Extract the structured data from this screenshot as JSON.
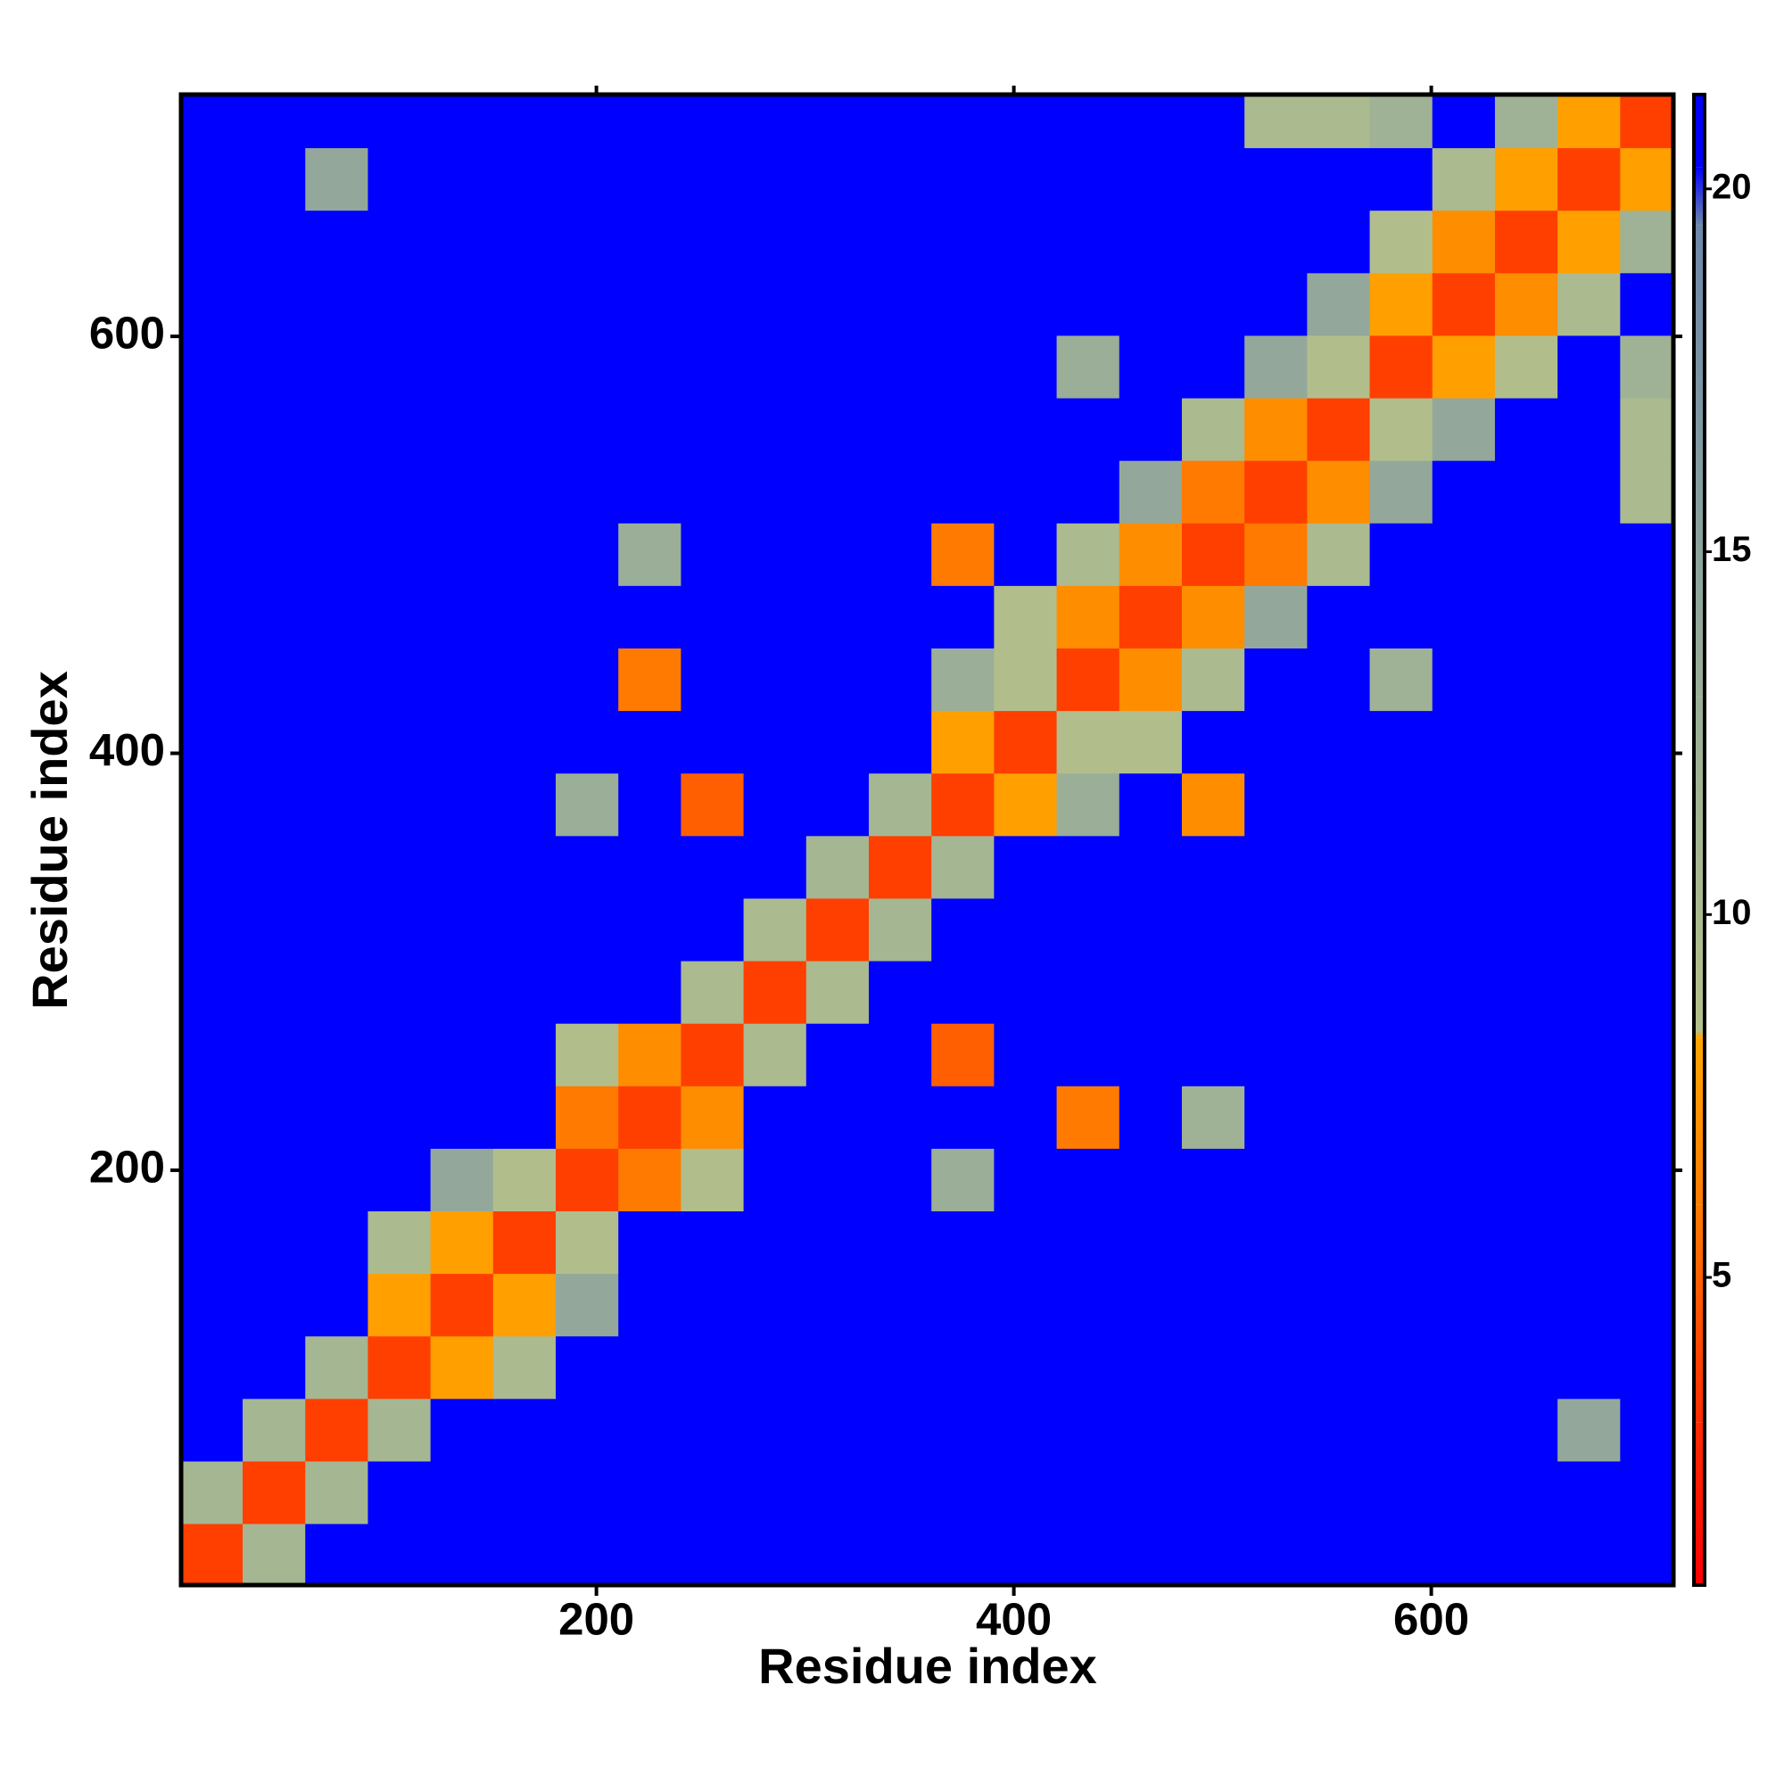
{
  "chart_data": {
    "type": "heatmap",
    "x_label": "Residue index",
    "y_label": "Residue index",
    "xlim": [
      1,
      716
    ],
    "ylim": [
      1,
      716
    ],
    "xticks": [
      200,
      400,
      600
    ],
    "yticks": [
      200,
      400,
      600
    ],
    "clim": [
      0.76,
      21.3
    ],
    "cticks": [
      5,
      10,
      15,
      20
    ],
    "colorscale": [
      {
        "value": 0.76,
        "color": "#ff0000"
      },
      {
        "value": 3,
        "color": "#ff2a00"
      },
      {
        "value": 6,
        "color": "#ff7a00"
      },
      {
        "value": 8.3,
        "color": "#ffa500"
      },
      {
        "value": 8.4,
        "color": "#b4c08a"
      },
      {
        "value": 13,
        "color": "#9aae98"
      },
      {
        "value": 19.5,
        "color": "#6d87a8"
      },
      {
        "value": 20.3,
        "color": "#0000ff"
      },
      {
        "value": 21.3,
        "color": "#0000ff"
      }
    ],
    "x": [
      15.5,
      45.5,
      75.5,
      105.5,
      135.5,
      165.5,
      195.5,
      225.5,
      255.5,
      285.5,
      315.5,
      345.5,
      375.5,
      405.5,
      435.5,
      465.5,
      495.5,
      525.5,
      555.5,
      585.5,
      615.5,
      645.5,
      675.5,
      705.5
    ],
    "y": [
      15.5,
      45.5,
      75.5,
      105.5,
      135.5,
      165.5,
      195.5,
      225.5,
      255.5,
      285.5,
      315.5,
      345.5,
      375.5,
      405.5,
      435.5,
      465.5,
      495.5,
      525.5,
      555.5,
      585.5,
      615.5,
      645.5,
      675.5,
      705.5
    ],
    "z": [
      [
        3.8,
        11,
        21,
        21,
        21,
        21,
        21,
        21,
        21,
        21,
        21,
        21,
        21,
        21,
        21,
        21,
        21,
        21,
        21,
        21,
        21,
        21,
        21,
        21
      ],
      [
        11,
        3.8,
        11,
        21,
        21,
        21,
        21,
        21,
        21,
        21,
        21,
        21,
        21,
        21,
        21,
        21,
        21,
        21,
        21,
        21,
        21,
        21,
        21,
        21
      ],
      [
        21,
        11,
        3.8,
        11,
        21,
        21,
        21,
        21,
        21,
        21,
        21,
        21,
        21,
        21,
        21,
        21,
        21,
        21,
        21,
        21,
        21,
        21,
        14,
        21
      ],
      [
        21,
        21,
        11,
        3.8,
        8,
        10,
        21,
        21,
        21,
        21,
        21,
        21,
        21,
        21,
        21,
        21,
        21,
        21,
        21,
        21,
        21,
        21,
        21,
        21
      ],
      [
        21,
        21,
        21,
        8,
        3.8,
        8,
        14,
        21,
        21,
        21,
        21,
        21,
        21,
        21,
        21,
        21,
        21,
        21,
        21,
        21,
        21,
        21,
        21,
        21
      ],
      [
        21,
        21,
        21,
        10,
        8,
        3.8,
        9,
        21,
        21,
        21,
        21,
        21,
        21,
        21,
        21,
        21,
        21,
        21,
        21,
        21,
        21,
        21,
        21,
        21
      ],
      [
        21,
        21,
        21,
        21,
        14,
        9,
        3.8,
        6,
        9,
        21,
        21,
        21,
        13,
        21,
        21,
        21,
        21,
        21,
        21,
        21,
        21,
        21,
        21,
        21
      ],
      [
        21,
        21,
        21,
        21,
        21,
        21,
        6,
        3.8,
        7,
        21,
        21,
        21,
        21,
        21,
        6,
        21,
        12,
        21,
        21,
        21,
        21,
        21,
        21,
        21
      ],
      [
        21,
        21,
        21,
        21,
        21,
        21,
        9,
        7,
        3.8,
        10,
        21,
        21,
        5,
        21,
        21,
        21,
        21,
        21,
        21,
        21,
        21,
        21,
        21,
        21
      ],
      [
        21,
        21,
        21,
        21,
        21,
        21,
        21,
        21,
        10,
        3.8,
        10,
        21,
        21,
        21,
        21,
        21,
        21,
        21,
        21,
        21,
        21,
        21,
        21,
        21
      ],
      [
        21,
        21,
        21,
        21,
        21,
        21,
        21,
        21,
        21,
        10,
        3.8,
        11,
        21,
        21,
        21,
        21,
        21,
        21,
        21,
        21,
        21,
        21,
        21,
        21
      ],
      [
        21,
        21,
        21,
        21,
        21,
        21,
        21,
        21,
        21,
        21,
        11,
        3.8,
        11,
        21,
        21,
        21,
        21,
        21,
        21,
        21,
        21,
        21,
        21,
        21
      ],
      [
        21,
        21,
        21,
        21,
        21,
        21,
        13,
        21,
        5,
        21,
        21,
        11,
        3.8,
        8,
        13,
        21,
        7,
        21,
        21,
        21,
        21,
        21,
        21,
        21
      ],
      [
        21,
        21,
        21,
        21,
        21,
        21,
        21,
        21,
        21,
        21,
        21,
        21,
        8,
        3.8,
        9,
        9,
        21,
        21,
        21,
        21,
        21,
        21,
        21,
        21
      ],
      [
        21,
        21,
        21,
        21,
        21,
        21,
        21,
        6,
        21,
        21,
        21,
        21,
        13,
        9,
        3.8,
        7,
        10,
        21,
        21,
        12,
        21,
        21,
        21,
        21
      ],
      [
        21,
        21,
        21,
        21,
        21,
        21,
        21,
        21,
        21,
        21,
        21,
        21,
        21,
        9,
        7,
        3.8,
        7,
        14,
        21,
        21,
        21,
        21,
        21,
        21
      ],
      [
        21,
        21,
        21,
        21,
        21,
        21,
        21,
        13,
        21,
        21,
        21,
        21,
        6,
        21,
        10,
        7,
        3.8,
        6,
        10,
        21,
        21,
        21,
        21,
        21
      ],
      [
        21,
        21,
        21,
        21,
        21,
        21,
        21,
        21,
        21,
        21,
        21,
        21,
        21,
        21,
        21,
        14,
        6,
        3.8,
        7,
        14,
        21,
        21,
        21,
        10
      ],
      [
        21,
        21,
        21,
        21,
        21,
        21,
        21,
        21,
        21,
        21,
        21,
        21,
        21,
        21,
        21,
        21,
        10,
        7,
        3.8,
        9,
        14,
        21,
        21,
        10
      ],
      [
        21,
        21,
        21,
        21,
        21,
        21,
        21,
        21,
        21,
        21,
        21,
        21,
        21,
        21,
        13,
        21,
        21,
        14,
        9,
        3.8,
        8,
        9,
        21,
        12
      ],
      [
        21,
        21,
        21,
        21,
        21,
        21,
        21,
        21,
        21,
        21,
        21,
        21,
        21,
        21,
        21,
        21,
        21,
        21,
        14,
        8,
        3.8,
        7,
        10,
        21
      ],
      [
        21,
        21,
        21,
        21,
        21,
        21,
        21,
        21,
        21,
        21,
        21,
        21,
        21,
        21,
        21,
        21,
        21,
        21,
        21,
        9,
        7,
        3.8,
        8,
        12
      ],
      [
        21,
        21,
        14,
        21,
        21,
        21,
        21,
        21,
        21,
        21,
        21,
        21,
        21,
        21,
        21,
        21,
        21,
        21,
        21,
        21,
        10,
        8,
        3.8,
        8
      ],
      [
        21,
        21,
        21,
        21,
        21,
        21,
        21,
        21,
        21,
        21,
        21,
        21,
        21,
        21,
        21,
        21,
        21,
        10,
        10,
        12,
        21,
        12,
        8,
        3.8
      ]
    ]
  }
}
